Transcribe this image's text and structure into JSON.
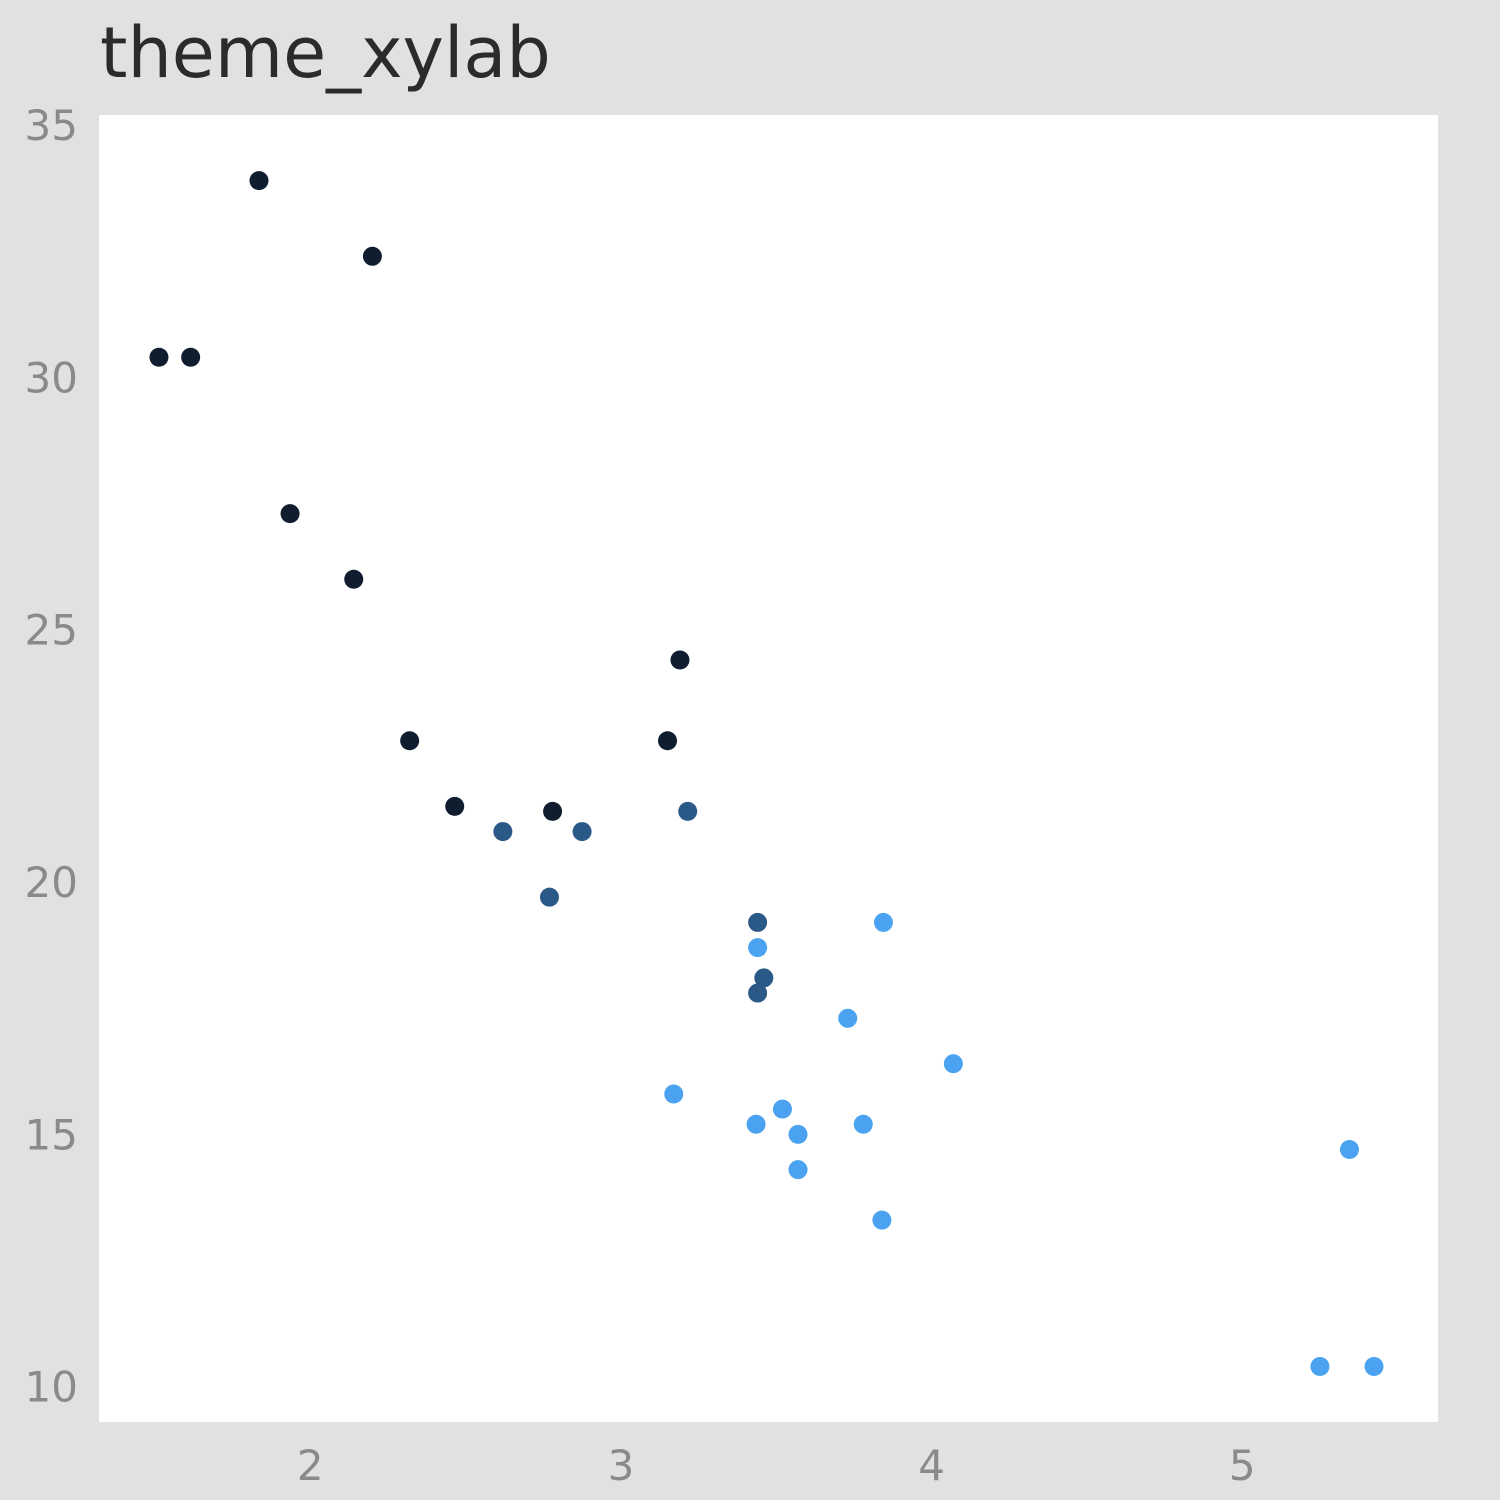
{
  "chart_data": {
    "type": "scatter",
    "title": "theme_xylab",
    "xlabel": "",
    "ylabel": "",
    "xlim": [
      1.32,
      5.63
    ],
    "ylim": [
      9.3,
      35.2
    ],
    "x_ticks": [
      2,
      3,
      4,
      5
    ],
    "y_ticks": [
      10,
      15,
      20,
      25,
      30,
      35
    ],
    "grid": false,
    "legend": "none",
    "colors": {
      "group1": "#0f1d2e",
      "group2": "#2b5987",
      "group3": "#4aa2f1"
    },
    "series": [
      {
        "color": "#0f1d2e",
        "points": [
          [
            1.835,
            33.9
          ],
          [
            2.2,
            32.4
          ],
          [
            1.513,
            30.4
          ],
          [
            1.615,
            30.4
          ],
          [
            1.935,
            27.3
          ],
          [
            2.14,
            26.0
          ],
          [
            3.19,
            24.4
          ],
          [
            2.32,
            22.8
          ],
          [
            3.15,
            22.8
          ],
          [
            2.465,
            21.5
          ],
          [
            2.78,
            21.4
          ]
        ]
      },
      {
        "color": "#2b5987",
        "points": [
          [
            2.62,
            21.0
          ],
          [
            2.875,
            21.0
          ],
          [
            3.215,
            21.4
          ],
          [
            2.77,
            19.7
          ],
          [
            3.44,
            19.2
          ],
          [
            3.46,
            18.1
          ],
          [
            3.44,
            17.8
          ]
        ]
      },
      {
        "color": "#4aa2f1",
        "points": [
          [
            3.44,
            18.7
          ],
          [
            3.845,
            19.2
          ],
          [
            3.73,
            17.3
          ],
          [
            4.07,
            16.4
          ],
          [
            3.17,
            15.8
          ],
          [
            3.435,
            15.2
          ],
          [
            3.52,
            15.5
          ],
          [
            3.78,
            15.2
          ],
          [
            3.57,
            15.0
          ],
          [
            3.57,
            14.3
          ],
          [
            3.84,
            13.3
          ],
          [
            5.345,
            14.7
          ],
          [
            5.25,
            10.4
          ],
          [
            5.424,
            10.4
          ]
        ]
      }
    ]
  }
}
